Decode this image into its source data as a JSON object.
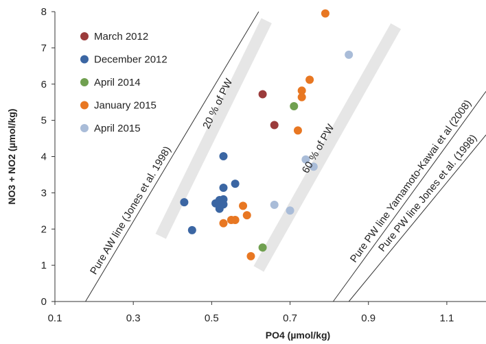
{
  "chart_data": {
    "type": "scatter",
    "xlabel": "PO4 (µmol/kg)",
    "ylabel": "NO3 + NO2 (µmol/kg)",
    "xlim": [
      0.1,
      1.2
    ],
    "ylim": [
      0,
      8
    ],
    "xticks": [
      "0.1",
      "0.3",
      "0.5",
      "0.7",
      "0.9",
      "1.1"
    ],
    "xtick_values": [
      0.1,
      0.3,
      0.5,
      0.7,
      0.9,
      1.1
    ],
    "yticks": [
      "0",
      "1",
      "2",
      "3",
      "4",
      "5",
      "6",
      "7",
      "8"
    ],
    "ytick_values": [
      0,
      1,
      2,
      3,
      4,
      5,
      6,
      7,
      8
    ],
    "grid": false,
    "legend_position": "top-left",
    "series": [
      {
        "name": "March 2012",
        "color": "#9b3b3b",
        "points": [
          [
            0.63,
            5.72
          ],
          [
            0.66,
            4.87
          ]
        ]
      },
      {
        "name": "December 2012",
        "color": "#3b66a3",
        "points": [
          [
            0.43,
            2.74
          ],
          [
            0.45,
            1.97
          ],
          [
            0.51,
            2.71
          ],
          [
            0.52,
            2.8
          ],
          [
            0.52,
            2.56
          ],
          [
            0.53,
            2.82
          ],
          [
            0.53,
            2.68
          ],
          [
            0.53,
            3.14
          ],
          [
            0.53,
            4.01
          ],
          [
            0.56,
            3.25
          ]
        ]
      },
      {
        "name": "April 2014",
        "color": "#70a050",
        "points": [
          [
            0.63,
            1.49
          ],
          [
            0.71,
            5.39
          ]
        ]
      },
      {
        "name": "January 2015",
        "color": "#e87722",
        "points": [
          [
            0.53,
            2.16
          ],
          [
            0.55,
            2.25
          ],
          [
            0.56,
            2.25
          ],
          [
            0.58,
            2.64
          ],
          [
            0.59,
            2.38
          ],
          [
            0.6,
            1.25
          ],
          [
            0.72,
            4.72
          ],
          [
            0.73,
            5.64
          ],
          [
            0.73,
            5.82
          ],
          [
            0.75,
            6.12
          ],
          [
            0.79,
            7.95
          ]
        ]
      },
      {
        "name": "April 2015",
        "color": "#a9bcd8",
        "points": [
          [
            0.66,
            2.67
          ],
          [
            0.7,
            2.51
          ],
          [
            0.74,
            3.92
          ],
          [
            0.76,
            3.72
          ],
          [
            0.85,
            6.81
          ]
        ]
      }
    ],
    "reference_lines": [
      {
        "label": "Pure AW line (Jones et al. 1998)",
        "color": "#333333",
        "x1": 0.178,
        "y1": 0,
        "x2": 0.62,
        "y2": 8
      },
      {
        "label": "Pure PW line Yamamoto-Kawai et al (2008)",
        "color": "#333333",
        "x1": 0.81,
        "y1": 0,
        "x2": 1.2,
        "y2": 5.8
      },
      {
        "label": "Pure PW line Jones et al. (1998)",
        "color": "#333333",
        "x1": 0.85,
        "y1": 0,
        "x2": 1.2,
        "y2": 4.6
      }
    ],
    "bands": [
      {
        "label": "20 % of PW",
        "color": "#e6e6e6",
        "x1": 0.37,
        "y1": 1.8,
        "x2": 0.64,
        "y2": 7.75
      },
      {
        "label": "60 % of PW",
        "color": "#e6e6e6",
        "x1": 0.62,
        "y1": 0.9,
        "x2": 0.97,
        "y2": 7.6
      }
    ]
  }
}
